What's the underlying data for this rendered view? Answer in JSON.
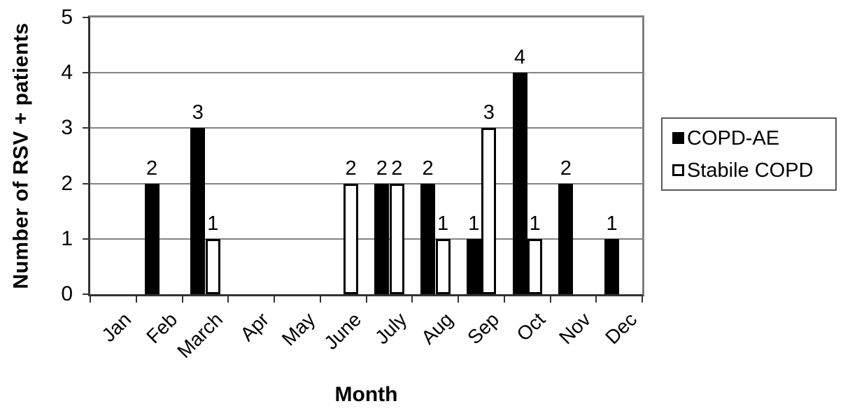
{
  "chart_data": {
    "type": "bar",
    "title": "",
    "xlabel": "Month",
    "ylabel": "Number of RSV + patients",
    "categories": [
      "Jan",
      "Feb",
      "March",
      "Apr",
      "May",
      "June",
      "July",
      "Aug",
      "Sep",
      "Oct",
      "Nov",
      "Dec"
    ],
    "series": [
      {
        "name": "COPD-AE",
        "style": "filled",
        "color": "#000000",
        "values": [
          0,
          2,
          3,
          0,
          0,
          0,
          2,
          2,
          1,
          4,
          2,
          1
        ]
      },
      {
        "name": "Stabile COPD",
        "style": "open",
        "color": "#ffffff",
        "border_color": "#000000",
        "values": [
          0,
          0,
          1,
          0,
          0,
          2,
          2,
          1,
          3,
          1,
          0,
          0
        ]
      }
    ],
    "ylim": [
      0,
      5
    ],
    "yticks": [
      0,
      1,
      2,
      3,
      4,
      5
    ],
    "grid": true,
    "legend_position": "right",
    "data_labels": true
  },
  "colors": {
    "bar_filled": "#000000",
    "bar_open_fill": "#ffffff",
    "bar_border": "#000000",
    "gridline": "#848484",
    "plot_border_top_right": "#808080",
    "axis": "#333333",
    "text": "#000000",
    "background": "#ffffff"
  }
}
